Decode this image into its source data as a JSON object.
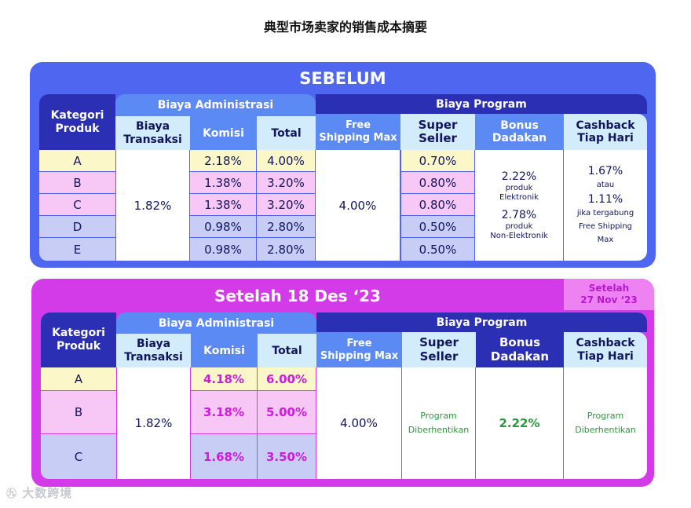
{
  "page_title": "典型市场卖家的销售成本摘要",
  "watermark": "大数跨境",
  "before": {
    "title": "SEBELUM",
    "header": {
      "kategori": "Kategori Produk",
      "admin_group": "Biaya Administrasi",
      "program_group": "Biaya Program",
      "biaya_transaksi": "Biaya Transaksi",
      "komisi": "Komisi",
      "total": "Total",
      "free_shipping": "Free Shipping Max",
      "super_seller": "Super Seller",
      "bonus": "Bonus Dadakan",
      "cashback": "Cashback Tiap Hari"
    },
    "rows": [
      {
        "kategori": "A",
        "komisi": "2.18%",
        "total": "4.00%",
        "super_seller": "0.70%"
      },
      {
        "kategori": "B",
        "komisi": "1.38%",
        "total": "3.20%",
        "super_seller": "0.80%"
      },
      {
        "kategori": "C",
        "komisi": "1.38%",
        "total": "3.20%",
        "super_seller": "0.80%"
      },
      {
        "kategori": "D",
        "komisi": "0.98%",
        "total": "2.80%",
        "super_seller": "0.50%"
      },
      {
        "kategori": "E",
        "komisi": "0.98%",
        "total": "2.80%",
        "super_seller": "0.50%"
      }
    ],
    "biaya_transaksi": "1.82%",
    "free_shipping": "4.00%",
    "bonus": {
      "v1": "2.22%",
      "t1": "produk",
      "t2": "Elektronik",
      "v2": "2.78%",
      "t3": "produk",
      "t4": "Non-Elektronik"
    },
    "cashback": {
      "v1": "1.67%",
      "t1": "atau",
      "v2": "1.11%",
      "t2": "jika tergabung",
      "t3": "Free Shipping",
      "t4": "Max"
    }
  },
  "after": {
    "title": "Setelah 18 Des ‘23",
    "side_tab": {
      "line1": "Setelah",
      "line2": "27 Nov ‘23"
    },
    "header": {
      "kategori": "Kategori Produk",
      "admin_group": "Biaya Administrasi",
      "program_group": "Biaya Program",
      "biaya_transaksi": "Biaya Transaksi",
      "komisi": "Komisi",
      "total": "Total",
      "free_shipping": "Free Shipping Max",
      "super_seller": "Super Seller",
      "bonus": "Bonus Dadakan",
      "cashback": "Cashback Tiap Hari"
    },
    "rows": [
      {
        "kategori": "A",
        "komisi": "4.18%",
        "total": "6.00%"
      },
      {
        "kategori": "B",
        "komisi": "3.18%",
        "total": "5.00%"
      },
      {
        "kategori": "C",
        "komisi": "1.68%",
        "total": "3.50%"
      }
    ],
    "biaya_transaksi": "1.82%",
    "free_shipping": "4.00%",
    "super_seller": "Program Diberhentikan",
    "bonus": "2.22%",
    "cashback": "Program Diberhentikan"
  },
  "colors": {
    "before_frame": "#4f67f0",
    "after_frame": "#d43be8",
    "navy": "#2a2fb4",
    "header_light": "#d2ecfb",
    "row_yellow": "#fcf7c9",
    "row_pink": "#f7c8f5",
    "row_lavender": "#c8cdf6",
    "magenta_text": "#d01adf",
    "green_text": "#2c9a3b"
  }
}
